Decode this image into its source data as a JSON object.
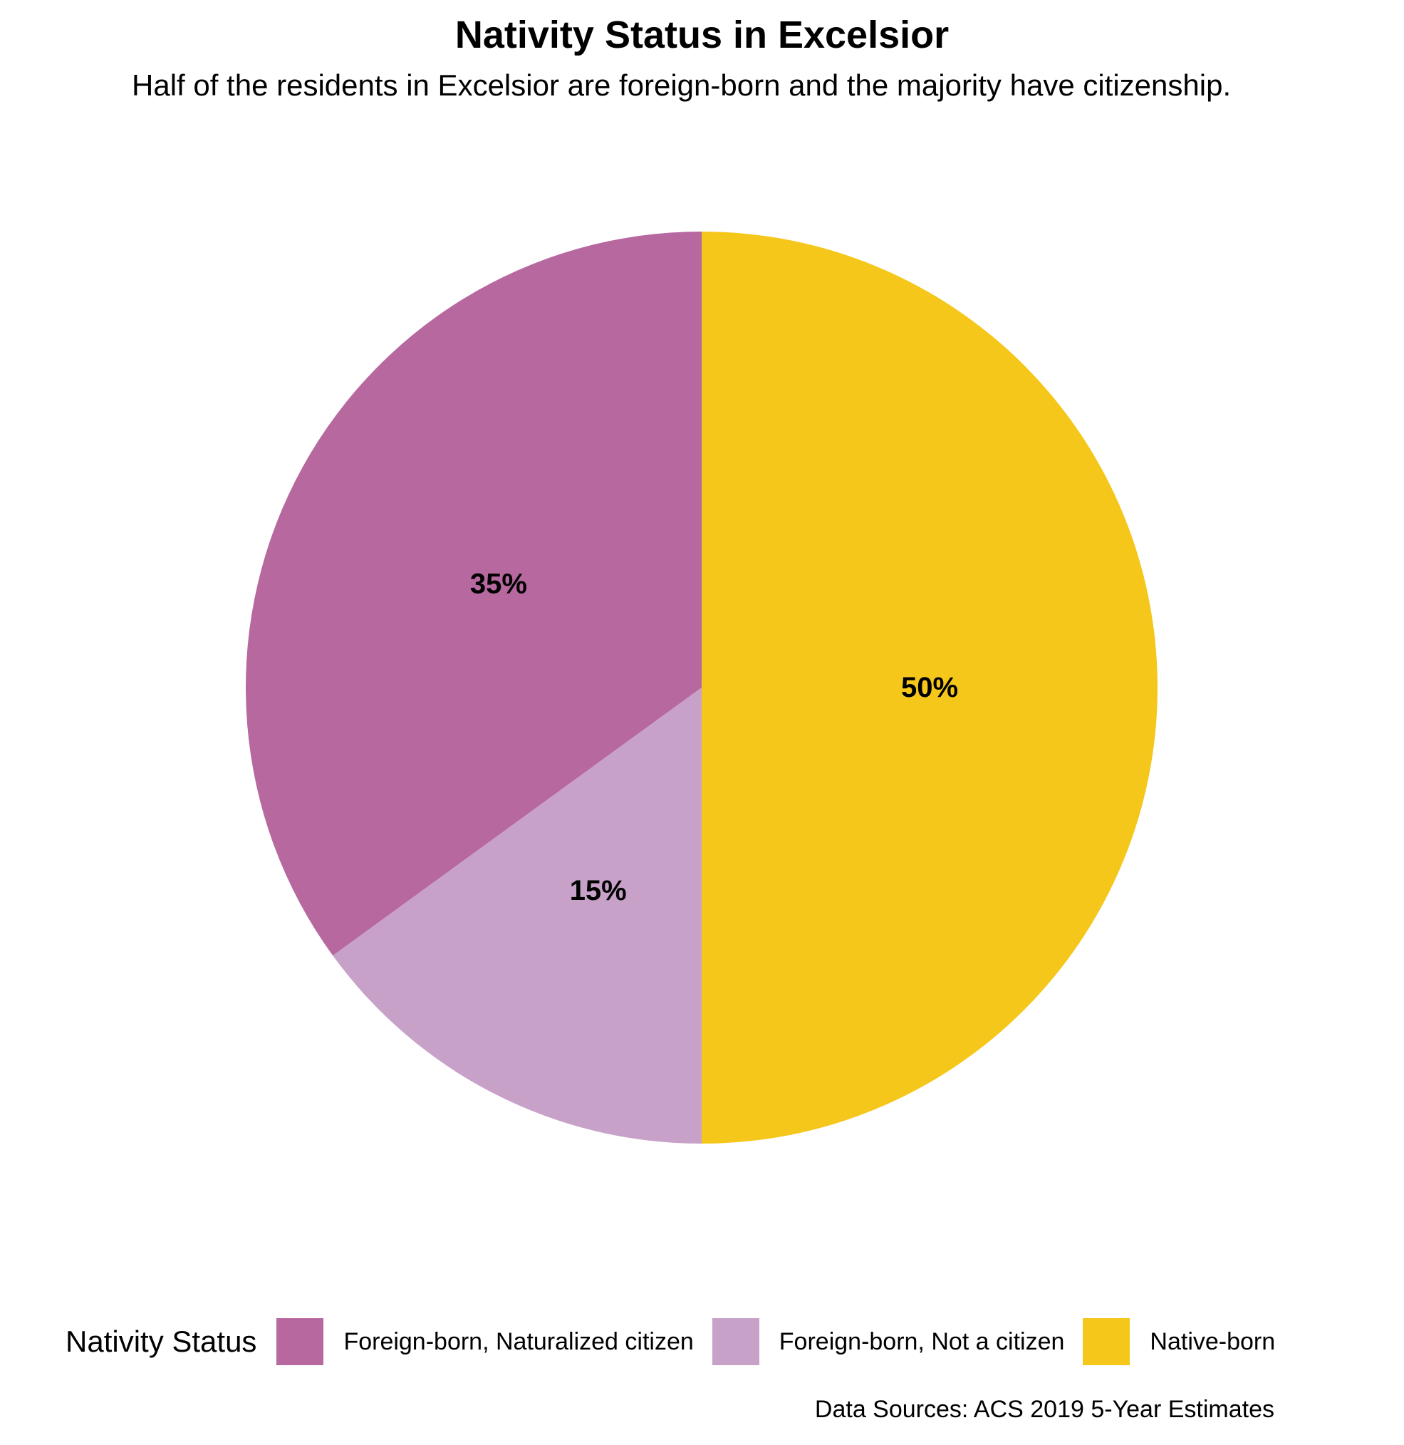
{
  "chart_data": {
    "type": "pie",
    "title": "Nativity Status in Excelsior",
    "subtitle": "Half of the residents in Excelsior are foreign-born and the majority have citizenship.",
    "slices": [
      {
        "name": "Foreign-born, Naturalized citizen",
        "value": 35,
        "label": "35%",
        "color": "#b7689f"
      },
      {
        "name": "Foreign-born, Not a citizen",
        "value": 15,
        "label": "15%",
        "color": "#c8a1c9"
      },
      {
        "name": "Native-born",
        "value": 50,
        "label": "50%",
        "color": "#f5c71a"
      }
    ],
    "legend": {
      "title": "Nativity Status",
      "position": "bottom"
    },
    "caption": "Data Sources: ACS 2019 5-Year Estimates"
  }
}
